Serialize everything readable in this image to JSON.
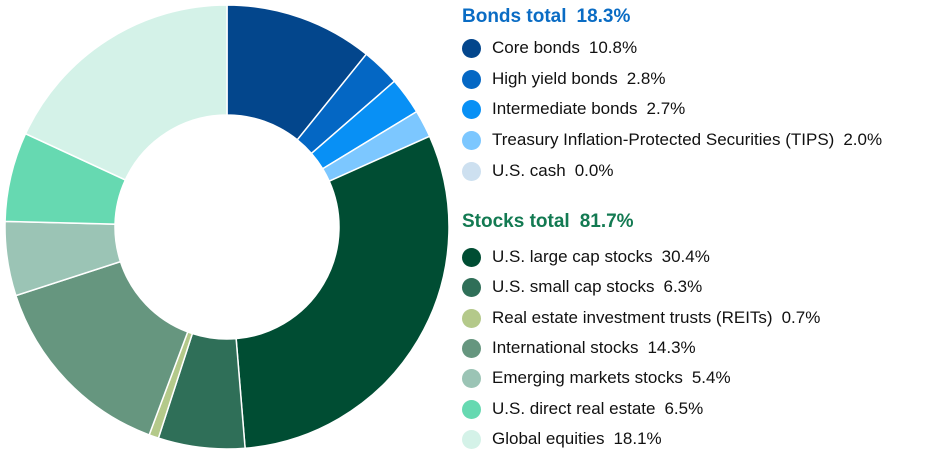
{
  "chart_data": {
    "type": "pie",
    "donut": true,
    "start": "top",
    "direction": "clockwise",
    "groups": [
      {
        "title": "Bonds total",
        "total": "18.3%",
        "color": "#0a6cc4",
        "items": [
          {
            "label": "Core bonds",
            "value": 10.8,
            "display": "10.8%",
            "color": "#03468c"
          },
          {
            "label": "High yield bonds",
            "value": 2.8,
            "display": "2.8%",
            "color": "#0467c4"
          },
          {
            "label": "Intermediate bonds",
            "value": 2.7,
            "display": "2.7%",
            "color": "#0890f5"
          },
          {
            "label": "Treasury Inflation-Protected Securities (TIPS)",
            "value": 2.0,
            "display": "2.0%",
            "color": "#7cc7ff"
          },
          {
            "label": "U.S. cash",
            "value": 0.0,
            "display": "0.0%",
            "color": "#cde0f0"
          }
        ]
      },
      {
        "title": "Stocks total",
        "total": "81.7%",
        "color": "#137a52",
        "items": [
          {
            "label": "U.S. large cap stocks",
            "value": 30.4,
            "display": "30.4%",
            "color": "#004d33"
          },
          {
            "label": "U.S. small cap stocks",
            "value": 6.3,
            "display": "6.3%",
            "color": "#2f6f58"
          },
          {
            "label": "Real estate investment trusts (REITs)",
            "value": 0.7,
            "display": "0.7%",
            "color": "#b4c98a"
          },
          {
            "label": "International stocks",
            "value": 14.3,
            "display": "14.3%",
            "color": "#66967f"
          },
          {
            "label": "Emerging markets stocks",
            "value": 5.4,
            "display": "5.4%",
            "color": "#9bc4b5"
          },
          {
            "label": "U.S. direct real estate",
            "value": 6.5,
            "display": "6.5%",
            "color": "#66d9b1"
          },
          {
            "label": "Global equities",
            "value": 18.1,
            "display": "18.1%",
            "color": "#d4f2e8"
          }
        ]
      }
    ]
  }
}
